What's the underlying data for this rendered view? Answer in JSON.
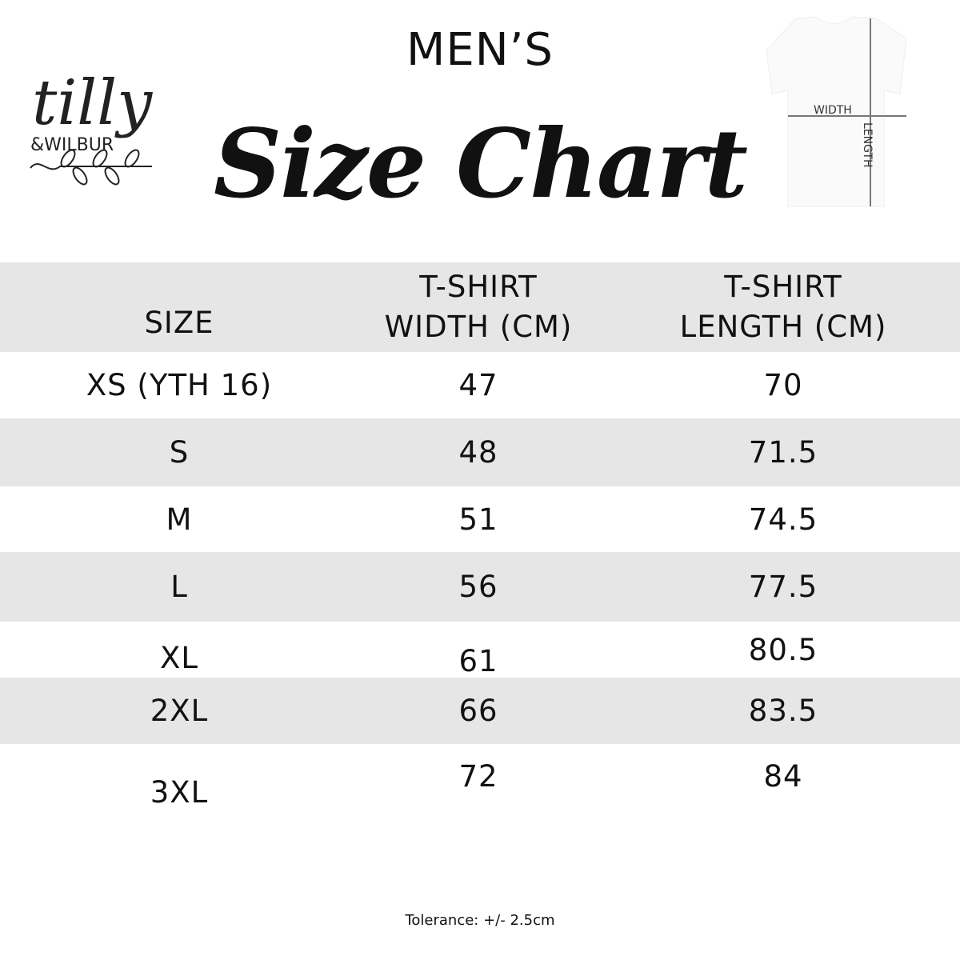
{
  "brand": {
    "logo_text": "tilly & WILBUR"
  },
  "heading": {
    "subtitle": "MEN’S",
    "title": "Size Chart"
  },
  "diagram": {
    "width_label": "WIDTH",
    "length_label": "LENGTH"
  },
  "table": {
    "headers": [
      "SIZE",
      "T-SHIRT\nWIDTH (CM)",
      "T-SHIRT\nLENGTH (CM)"
    ],
    "rows": [
      [
        "XS (YTH 16)",
        "47",
        "70"
      ],
      [
        "S",
        "48",
        "71.5"
      ],
      [
        "M",
        "51",
        "74.5"
      ],
      [
        "L",
        "56",
        "77.5"
      ],
      [
        "XL",
        "61",
        "80.5"
      ],
      [
        "2XL",
        "66",
        "83.5"
      ],
      [
        "3XL",
        "72",
        "84"
      ]
    ]
  },
  "footer": {
    "tolerance": "Tolerance: +/- 2.5cm"
  },
  "colors": {
    "row_stripe": "#e6e6e6",
    "text": "#111111"
  }
}
